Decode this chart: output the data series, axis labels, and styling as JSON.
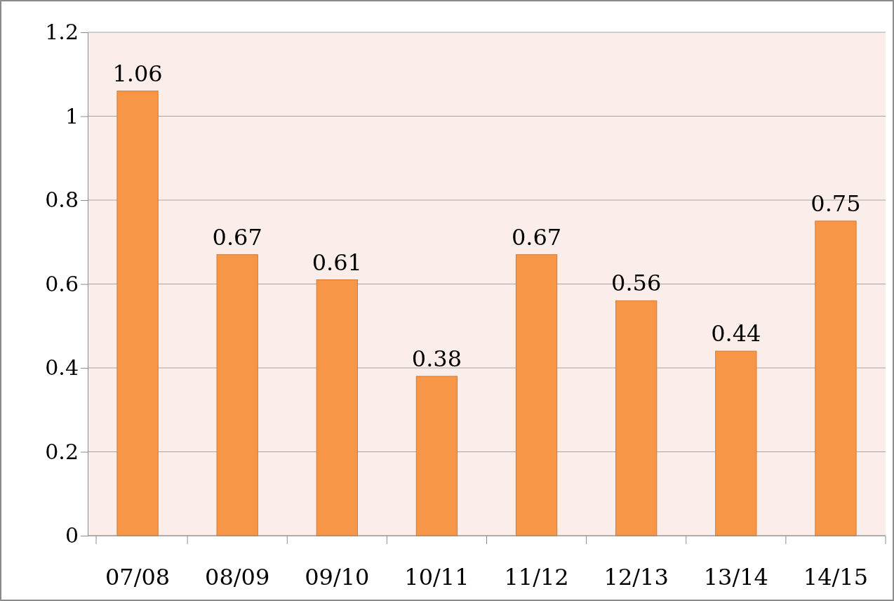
{
  "chart_data": {
    "type": "bar",
    "categories": [
      "07/08",
      "08/09",
      "09/10",
      "10/11",
      "11/12",
      "12/13",
      "13/14",
      "14/15"
    ],
    "values": [
      1.06,
      0.67,
      0.61,
      0.38,
      0.67,
      0.56,
      0.44,
      0.75
    ],
    "color": "#f79646",
    "ylim": [
      0,
      1.2
    ],
    "yticks": [
      0,
      0.2,
      0.4,
      0.6,
      0.8,
      1,
      1.2
    ],
    "grid": "y",
    "data_labels": true
  }
}
